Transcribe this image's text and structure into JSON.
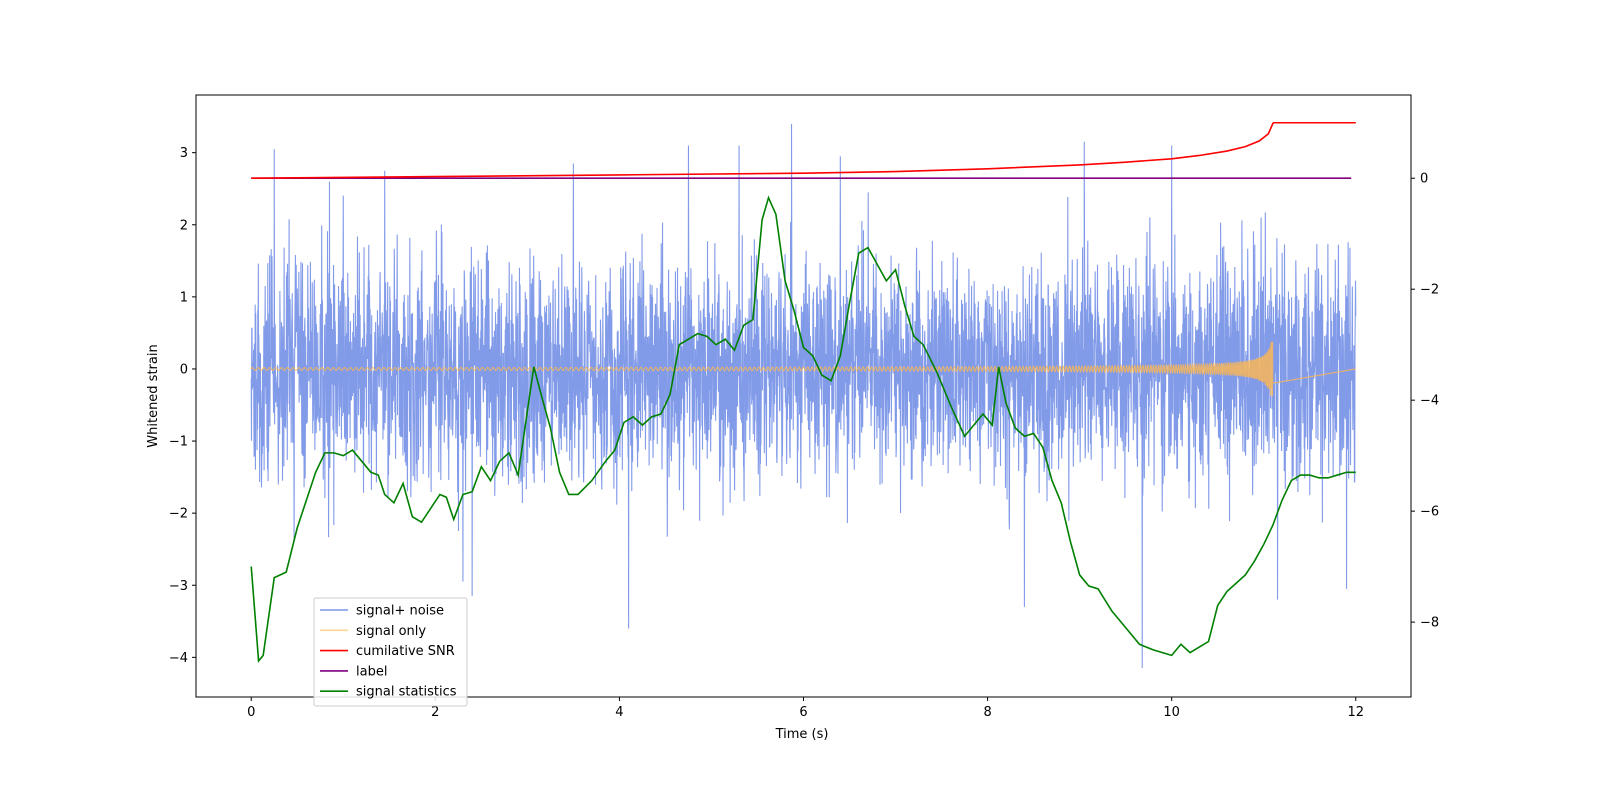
{
  "chart_data": {
    "type": "line",
    "xlabel": "Time (s)",
    "ylabel": "Whitened strain",
    "y2label": "",
    "xlim": [
      -0.6,
      12.6
    ],
    "ylim": [
      -4.55,
      3.8
    ],
    "y2lim": [
      -9.35,
      1.5
    ],
    "xticks": [
      0,
      2,
      4,
      6,
      8,
      10,
      12
    ],
    "yticks": [
      -4,
      -3,
      -2,
      -1,
      0,
      1,
      2,
      3
    ],
    "y2ticks": [
      -8,
      -6,
      -4,
      -2,
      0
    ],
    "grid": false,
    "legend_position": "lower-left",
    "series": [
      {
        "name": "signal+ noise",
        "color": "#7b96e8",
        "axis": "left",
        "description": "whitened noise, roughly within [-2, 2] with spikes to about 3.4 and -4.2",
        "noise_std": 0.75,
        "spikes": [
          {
            "t": 0.25,
            "v": 3.05
          },
          {
            "t": 0.85,
            "v": 2.6
          },
          {
            "t": 1.45,
            "v": 2.75
          },
          {
            "t": 2.3,
            "v": -2.95
          },
          {
            "t": 2.4,
            "v": -3.15
          },
          {
            "t": 3.5,
            "v": 2.85
          },
          {
            "t": 4.1,
            "v": -3.6
          },
          {
            "t": 4.75,
            "v": 3.1
          },
          {
            "t": 5.3,
            "v": 3.1
          },
          {
            "t": 5.87,
            "v": 3.4
          },
          {
            "t": 6.4,
            "v": 2.95
          },
          {
            "t": 8.4,
            "v": -3.3
          },
          {
            "t": 9.68,
            "v": -4.15
          },
          {
            "t": 9.05,
            "v": 3.15
          },
          {
            "t": 10.0,
            "v": 3.1
          },
          {
            "t": 11.15,
            "v": -3.2
          },
          {
            "t": 11.9,
            "v": -3.05
          }
        ]
      },
      {
        "name": "signal only",
        "color": "#ffb84d",
        "axis": "left",
        "description": "inspiral chirp, amplitude grows until merger at about t = 11.1 s then flat zero",
        "merger_time": 11.1,
        "peak_amplitude": 0.42
      },
      {
        "name": "cumilative SNR",
        "color": "#ff0000",
        "axis": "right",
        "x": [
          0,
          2,
          4,
          6,
          7,
          8,
          9,
          9.5,
          10,
          10.3,
          10.6,
          10.8,
          10.95,
          11.05,
          11.1,
          11.11,
          12.0
        ],
        "y": [
          0.0,
          0.03,
          0.06,
          0.09,
          0.12,
          0.17,
          0.24,
          0.29,
          0.35,
          0.41,
          0.49,
          0.57,
          0.67,
          0.8,
          0.99,
          1.0,
          1.0
        ]
      },
      {
        "name": "label",
        "color": "#800080",
        "axis": "right",
        "x": [
          0,
          11.95
        ],
        "y": [
          0,
          0
        ]
      },
      {
        "name": "signal statistics",
        "color": "#008000",
        "axis": "right",
        "x": [
          0,
          0.08,
          0.13,
          0.25,
          0.38,
          0.5,
          0.6,
          0.7,
          0.8,
          0.9,
          1.0,
          1.1,
          1.2,
          1.3,
          1.38,
          1.45,
          1.55,
          1.65,
          1.75,
          1.85,
          1.95,
          2.05,
          2.12,
          2.2,
          2.3,
          2.4,
          2.5,
          2.6,
          2.7,
          2.8,
          2.9,
          3.0,
          3.07,
          3.15,
          3.25,
          3.35,
          3.45,
          3.55,
          3.7,
          3.85,
          3.95,
          4.05,
          4.15,
          4.25,
          4.35,
          4.45,
          4.55,
          4.65,
          4.75,
          4.85,
          4.95,
          5.05,
          5.15,
          5.25,
          5.35,
          5.45,
          5.55,
          5.62,
          5.7,
          5.8,
          5.9,
          6.0,
          6.1,
          6.2,
          6.3,
          6.4,
          6.5,
          6.6,
          6.7,
          6.8,
          6.9,
          7.0,
          7.1,
          7.2,
          7.3,
          7.45,
          7.6,
          7.75,
          7.85,
          7.95,
          8.05,
          8.12,
          8.2,
          8.3,
          8.4,
          8.5,
          8.6,
          8.7,
          8.8,
          8.9,
          9.0,
          9.1,
          9.2,
          9.35,
          9.5,
          9.65,
          9.8,
          9.9,
          10.0,
          10.1,
          10.2,
          10.3,
          10.4,
          10.5,
          10.6,
          10.7,
          10.8,
          10.9,
          11.0,
          11.1,
          11.2,
          11.3,
          11.4,
          11.5,
          11.6,
          11.7,
          11.8,
          11.9,
          12.0
        ],
        "y": [
          -7.0,
          -8.7,
          -8.6,
          -7.2,
          -7.1,
          -6.3,
          -5.8,
          -5.3,
          -4.95,
          -4.95,
          -5.0,
          -4.9,
          -5.1,
          -5.3,
          -5.35,
          -5.7,
          -5.85,
          -5.5,
          -6.1,
          -6.2,
          -5.95,
          -5.7,
          -5.75,
          -6.15,
          -5.7,
          -5.65,
          -5.2,
          -5.45,
          -5.1,
          -4.95,
          -5.35,
          -4.2,
          -3.4,
          -3.9,
          -4.5,
          -5.3,
          -5.7,
          -5.7,
          -5.45,
          -5.1,
          -4.9,
          -4.4,
          -4.3,
          -4.45,
          -4.3,
          -4.25,
          -3.9,
          -3.0,
          -2.9,
          -2.8,
          -2.85,
          -3.0,
          -2.9,
          -3.1,
          -2.65,
          -2.55,
          -0.75,
          -0.35,
          -0.65,
          -1.85,
          -2.4,
          -3.05,
          -3.2,
          -3.55,
          -3.65,
          -3.2,
          -2.25,
          -1.35,
          -1.25,
          -1.55,
          -1.85,
          -1.65,
          -2.3,
          -2.85,
          -3.0,
          -3.5,
          -4.1,
          -4.65,
          -4.45,
          -4.25,
          -4.45,
          -3.4,
          -4.05,
          -4.5,
          -4.65,
          -4.6,
          -4.85,
          -5.45,
          -5.85,
          -6.55,
          -7.15,
          -7.35,
          -7.4,
          -7.8,
          -8.1,
          -8.4,
          -8.5,
          -8.55,
          -8.6,
          -8.4,
          -8.55,
          -8.45,
          -8.35,
          -7.7,
          -7.45,
          -7.3,
          -7.15,
          -6.9,
          -6.6,
          -6.25,
          -5.8,
          -5.45,
          -5.35,
          -5.35,
          -5.4,
          -5.4,
          -5.35,
          -5.3,
          -5.3
        ]
      }
    ]
  }
}
